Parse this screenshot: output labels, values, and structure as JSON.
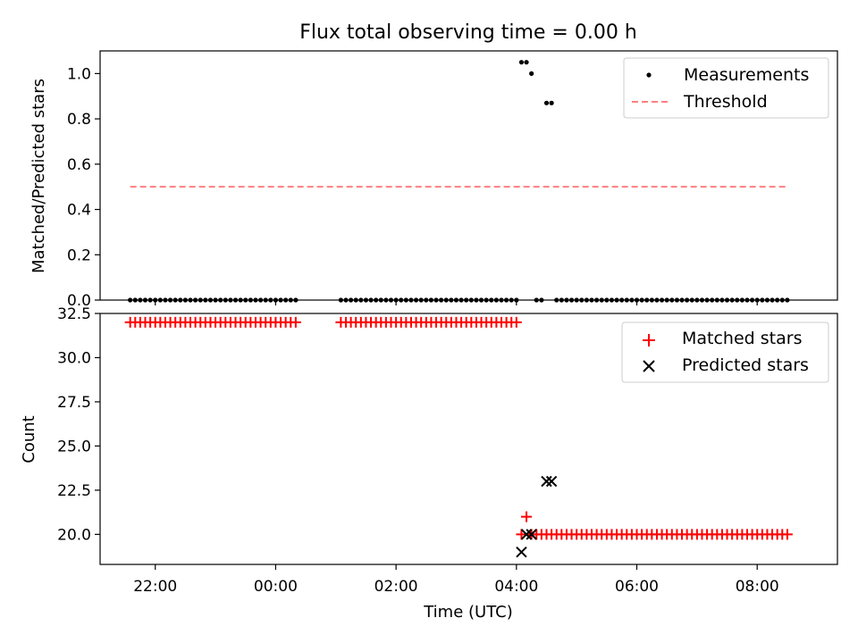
{
  "figure": {
    "title": "Flux total observing time = 0.00 h"
  },
  "colors": {
    "measurements": "#000000",
    "threshold": "#ff7f7f",
    "matched": "#ff0000",
    "predicted": "#000000"
  },
  "chart_data": [
    {
      "type": "scatter",
      "panel": "top",
      "title": "Flux total observing time = 0.00 h",
      "xlabel": "",
      "ylabel": "Matched/Predicted stars",
      "ylim": [
        0.0,
        1.1
      ],
      "yticks": [
        "0.0",
        "0.2",
        "0.4",
        "0.6",
        "0.8",
        "1.0"
      ],
      "xlim": [
        "21:05",
        "09:20"
      ],
      "grid": false,
      "legend": "top-right",
      "series": [
        {
          "name": "Measurements",
          "marker": "dot",
          "segments": [
            {
              "start": "21:35",
              "end": "00:20",
              "step_min": 5,
              "value": 0.0
            },
            {
              "start": "01:05",
              "end": "04:00",
              "step_min": 5,
              "value": 0.0
            },
            {
              "start": "04:20",
              "end": "04:25",
              "step_min": 5,
              "value": 0.0
            },
            {
              "start": "04:40",
              "end": "08:30",
              "step_min": 5,
              "value": 0.0
            }
          ],
          "points": [
            {
              "time": "04:05",
              "value": 1.05
            },
            {
              "time": "04:10",
              "value": 1.05
            },
            {
              "time": "04:15",
              "value": 1.0
            },
            {
              "time": "04:30",
              "value": 0.87
            },
            {
              "time": "04:35",
              "value": 0.87
            }
          ]
        },
        {
          "name": "Threshold",
          "style": "dashed-line",
          "points": [
            {
              "time": "21:35",
              "value": 0.5
            },
            {
              "time": "08:30",
              "value": 0.5
            }
          ]
        }
      ]
    },
    {
      "type": "scatter",
      "panel": "bottom",
      "xlabel": "Time (UTC)",
      "ylabel": "Count",
      "ylim": [
        18.3,
        32.5
      ],
      "yticks": [
        "20.0",
        "22.5",
        "25.0",
        "27.5",
        "30.0",
        "32.5"
      ],
      "xticks": [
        "22:00",
        "00:00",
        "02:00",
        "04:00",
        "06:00",
        "08:00"
      ],
      "xlim": [
        "21:05",
        "09:20"
      ],
      "grid": false,
      "legend": "top-right",
      "series": [
        {
          "name": "Matched stars",
          "marker": "plus",
          "segments": [
            {
              "start": "21:35",
              "end": "00:20",
              "step_min": 5,
              "value": 32
            },
            {
              "start": "01:05",
              "end": "04:00",
              "step_min": 5,
              "value": 32
            },
            {
              "start": "04:20",
              "end": "08:30",
              "step_min": 5,
              "value": 20
            }
          ],
          "points": [
            {
              "time": "04:05",
              "value": 20
            },
            {
              "time": "04:10",
              "value": 21
            },
            {
              "time": "04:15",
              "value": 20
            }
          ]
        },
        {
          "name": "Predicted stars",
          "marker": "x",
          "points": [
            {
              "time": "04:05",
              "value": 19
            },
            {
              "time": "04:10",
              "value": 20
            },
            {
              "time": "04:15",
              "value": 20
            },
            {
              "time": "04:30",
              "value": 23
            },
            {
              "time": "04:35",
              "value": 23
            }
          ]
        }
      ]
    }
  ]
}
